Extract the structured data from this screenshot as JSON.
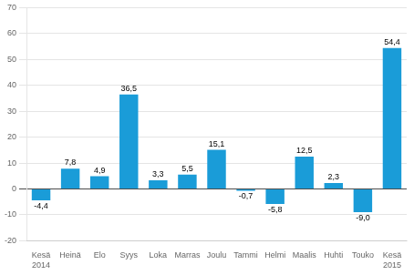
{
  "chart_data": {
    "type": "bar",
    "categories": [
      "Kesä",
      "Heinä",
      "Elo",
      "Syys",
      "Loka",
      "Marras",
      "Joulu",
      "Tammi",
      "Helmi",
      "Maalis",
      "Huhti",
      "Touko",
      "Kesä"
    ],
    "values": [
      -4.4,
      7.8,
      4.9,
      36.5,
      3.3,
      5.5,
      15.1,
      -0.7,
      -5.8,
      12.5,
      2.3,
      -9.0,
      54.4
    ],
    "value_labels": [
      "-4,4",
      "7,8",
      "4,9",
      "36,5",
      "3,3",
      "5,5",
      "15,1",
      "-0,7",
      "-5,8",
      "12,5",
      "2,3",
      "-9,0",
      "54,4"
    ],
    "color": "#1a9cd8",
    "ylim": [
      -20,
      70
    ],
    "yticks": [
      -20,
      -10,
      0,
      10,
      20,
      30,
      40,
      50,
      60,
      70
    ],
    "grid": true,
    "data_labels": true,
    "annotations": [
      {
        "text": "2014",
        "x": 0
      },
      {
        "text": "2015",
        "x": 12
      }
    ]
  }
}
